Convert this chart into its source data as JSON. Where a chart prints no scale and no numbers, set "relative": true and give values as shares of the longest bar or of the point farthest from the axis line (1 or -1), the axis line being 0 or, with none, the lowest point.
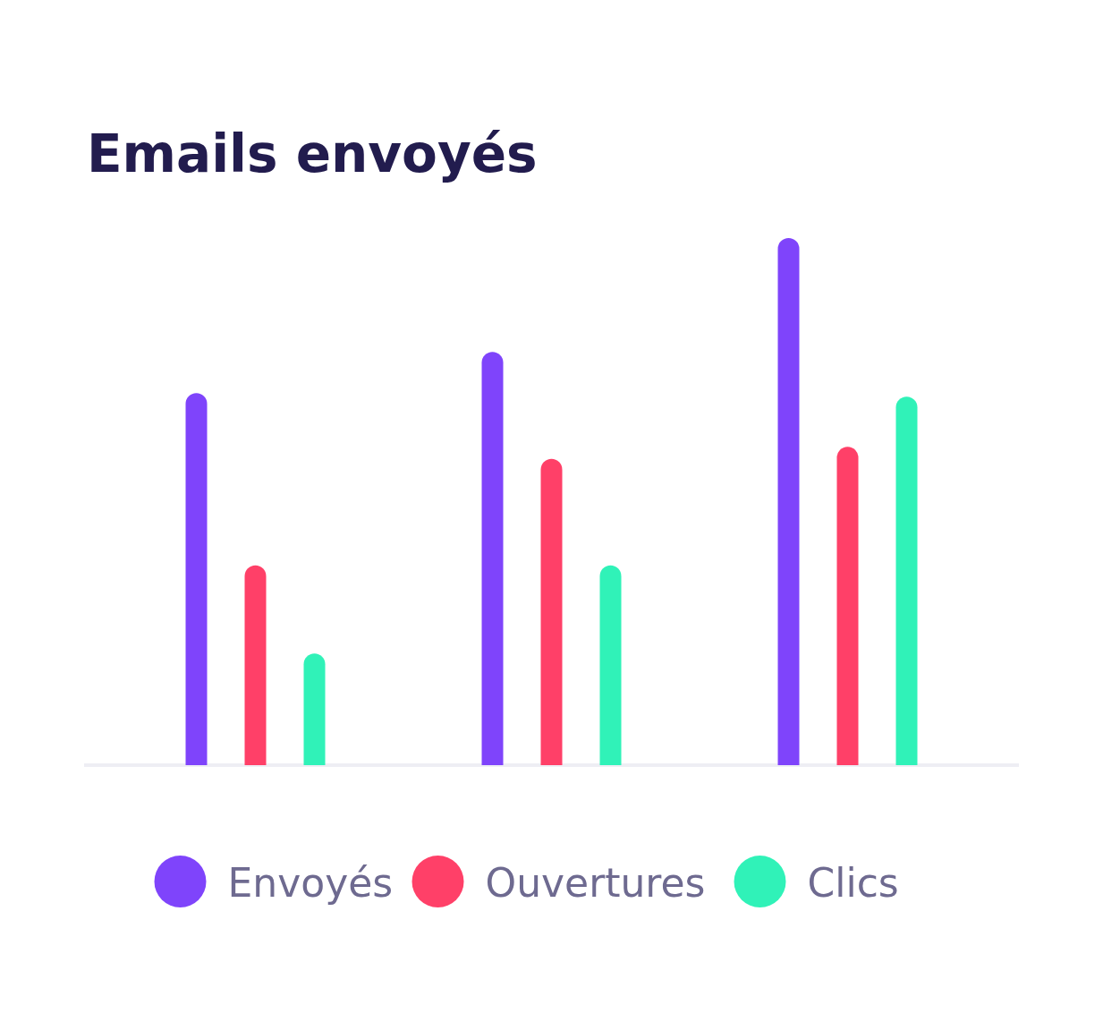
{
  "chart_data": {
    "type": "bar",
    "title": "Emails envoyés",
    "relative": true,
    "categories": [
      null,
      null,
      null
    ],
    "series": [
      {
        "name": "Envoyés",
        "color": "#7f44fb",
        "values": [
          0.706,
          0.784,
          1
        ]
      },
      {
        "name": "Ouvertures",
        "color": "#ff4068",
        "values": [
          0.379,
          0.581,
          0.604
        ]
      },
      {
        "name": "Clics",
        "color": "#30f2b8",
        "values": [
          0.212,
          0.379,
          0.699
        ]
      }
    ],
    "legend": "bottom"
  }
}
